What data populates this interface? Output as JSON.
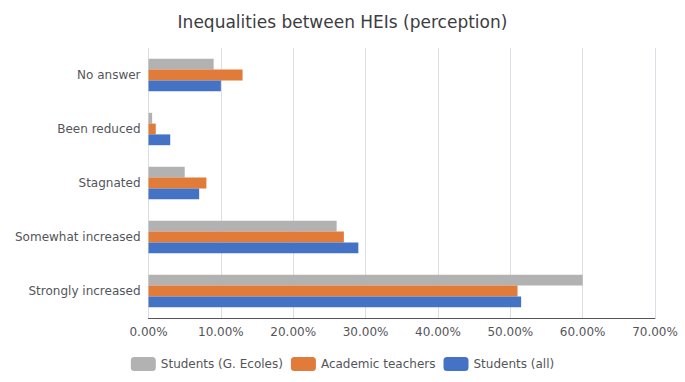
{
  "chart_data": {
    "type": "bar",
    "orientation": "horizontal",
    "title": "Inequalities between HEIs (perception)",
    "categories": [
      "No answer",
      "Been reduced",
      "Stagnated",
      "Somewhat increased",
      "Strongly increased"
    ],
    "series": [
      {
        "name": "Students (G. Ecoles)",
        "color": "#b2b2b2",
        "values": [
          0.09,
          0.005,
          0.05,
          0.26,
          0.6
        ]
      },
      {
        "name": "Academic teachers",
        "color": "#e07b39",
        "values": [
          0.13,
          0.01,
          0.08,
          0.27,
          0.51
        ]
      },
      {
        "name": "Students (all)",
        "color": "#4472c4",
        "values": [
          0.1,
          0.03,
          0.07,
          0.29,
          0.515
        ]
      }
    ],
    "xlim": [
      0.0,
      0.7
    ],
    "xticks": [
      {
        "value": 0.0,
        "label": "0.00%"
      },
      {
        "value": 0.1,
        "label": "10.00%"
      },
      {
        "value": 0.2,
        "label": "20.00%"
      },
      {
        "value": 0.3,
        "label": "30.00%"
      },
      {
        "value": 0.4,
        "label": "40.00%"
      },
      {
        "value": 0.5,
        "label": "50.00%"
      },
      {
        "value": 0.6,
        "label": "60.00%"
      },
      {
        "value": 0.7,
        "label": "70.00%"
      }
    ],
    "grid": true,
    "legend": "bottom"
  }
}
